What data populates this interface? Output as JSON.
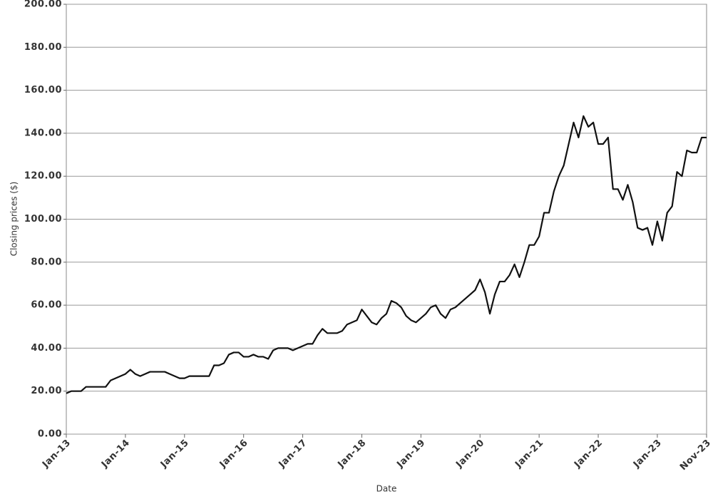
{
  "chart_data": {
    "type": "line",
    "x_label": "Date",
    "y_label": "Closing prices ($)",
    "x": [
      "2013-01",
      "2013-02",
      "2013-03",
      "2013-04",
      "2013-05",
      "2013-06",
      "2013-07",
      "2013-08",
      "2013-09",
      "2013-10",
      "2013-11",
      "2013-12",
      "2014-01",
      "2014-02",
      "2014-03",
      "2014-04",
      "2014-05",
      "2014-06",
      "2014-07",
      "2014-08",
      "2014-09",
      "2014-10",
      "2014-11",
      "2014-12",
      "2015-01",
      "2015-02",
      "2015-03",
      "2015-04",
      "2015-05",
      "2015-06",
      "2015-07",
      "2015-08",
      "2015-09",
      "2015-10",
      "2015-11",
      "2015-12",
      "2016-01",
      "2016-02",
      "2016-03",
      "2016-04",
      "2016-05",
      "2016-06",
      "2016-07",
      "2016-08",
      "2016-09",
      "2016-10",
      "2016-11",
      "2016-12",
      "2017-01",
      "2017-02",
      "2017-03",
      "2017-04",
      "2017-05",
      "2017-06",
      "2017-07",
      "2017-08",
      "2017-09",
      "2017-10",
      "2017-11",
      "2017-12",
      "2018-01",
      "2018-02",
      "2018-03",
      "2018-04",
      "2018-05",
      "2018-06",
      "2018-07",
      "2018-08",
      "2018-09",
      "2018-10",
      "2018-11",
      "2018-12",
      "2019-01",
      "2019-02",
      "2019-03",
      "2019-04",
      "2019-05",
      "2019-06",
      "2019-07",
      "2019-08",
      "2019-09",
      "2019-10",
      "2019-11",
      "2019-12",
      "2020-01",
      "2020-02",
      "2020-03",
      "2020-04",
      "2020-05",
      "2020-06",
      "2020-07",
      "2020-08",
      "2020-09",
      "2020-10",
      "2020-11",
      "2020-12",
      "2021-01",
      "2021-02",
      "2021-03",
      "2021-04",
      "2021-05",
      "2021-06",
      "2021-07",
      "2021-08",
      "2021-09",
      "2021-10",
      "2021-11",
      "2021-12",
      "2022-01",
      "2022-02",
      "2022-03",
      "2022-04",
      "2022-05",
      "2022-06",
      "2022-07",
      "2022-08",
      "2022-09",
      "2022-10",
      "2022-11",
      "2022-12",
      "2023-01",
      "2023-02",
      "2023-03",
      "2023-04",
      "2023-05",
      "2023-06",
      "2023-07",
      "2023-08",
      "2023-09",
      "2023-10",
      "2023-11"
    ],
    "series": [
      {
        "color": "#111111",
        "values": [
          19,
          20,
          20,
          20,
          22,
          22,
          22,
          22,
          22,
          25,
          26,
          27,
          28,
          30,
          28,
          27,
          28,
          29,
          29,
          29,
          29,
          28,
          27,
          26,
          26,
          27,
          27,
          27,
          27,
          27,
          32,
          32,
          33,
          37,
          38,
          38,
          36,
          36,
          37,
          36,
          36,
          35,
          39,
          40,
          40,
          40,
          39,
          40,
          41,
          42,
          42,
          46,
          49,
          47,
          47,
          47,
          48,
          51,
          52,
          53,
          58,
          55,
          52,
          51,
          54,
          56,
          62,
          61,
          59,
          55,
          53,
          52,
          54,
          56,
          59,
          60,
          56,
          54,
          58,
          59,
          61,
          63,
          65,
          67,
          72,
          66,
          56,
          65,
          71,
          71,
          74,
          79,
          73,
          80,
          88,
          88,
          92,
          103,
          103,
          113,
          120,
          125,
          135,
          145,
          138,
          148,
          143,
          145,
          135,
          135,
          138,
          114,
          114,
          109,
          116,
          108,
          96,
          95,
          96,
          88,
          99,
          90,
          103,
          106,
          122,
          120,
          132,
          131,
          131,
          138,
          138
        ]
      }
    ],
    "xlim": [
      "2013-01",
      "2023-11"
    ],
    "xticks": [
      {
        "value": "2013-01",
        "label": "Jan-13"
      },
      {
        "value": "2014-01",
        "label": "Jan-14"
      },
      {
        "value": "2015-01",
        "label": "Jan-15"
      },
      {
        "value": "2016-01",
        "label": "Jan-16"
      },
      {
        "value": "2017-01",
        "label": "Jan-17"
      },
      {
        "value": "2018-01",
        "label": "Jan-18"
      },
      {
        "value": "2019-01",
        "label": "Jan-19"
      },
      {
        "value": "2020-01",
        "label": "Jan-20"
      },
      {
        "value": "2021-01",
        "label": "Jan-21"
      },
      {
        "value": "2022-01",
        "label": "Jan-22"
      },
      {
        "value": "2023-01",
        "label": "Jan-23"
      },
      {
        "value": "2023-11",
        "label": "Nov-23"
      }
    ],
    "ylim": [
      0,
      200
    ],
    "yticks": [
      {
        "value": 0,
        "label": "0.00"
      },
      {
        "value": 20,
        "label": "20.00"
      },
      {
        "value": 40,
        "label": "40.00"
      },
      {
        "value": 60,
        "label": "60.00"
      },
      {
        "value": 80,
        "label": "80.00"
      },
      {
        "value": 100,
        "label": "100.00"
      },
      {
        "value": 120,
        "label": "120.00"
      },
      {
        "value": 140,
        "label": "140.00"
      },
      {
        "value": 160,
        "label": "160.00"
      },
      {
        "value": 180,
        "label": "180.00"
      },
      {
        "value": 200,
        "label": "200.00"
      }
    ],
    "grid": true
  }
}
